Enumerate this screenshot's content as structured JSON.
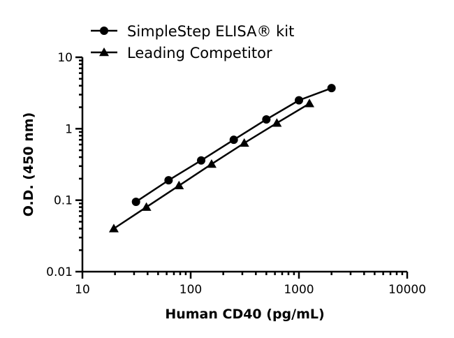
{
  "chart_data": {
    "type": "line",
    "xlabel": "Human CD40 (pg/mL)",
    "ylabel": "O.D. (450 nm)",
    "xscale": "log",
    "yscale": "log",
    "xlim": [
      10,
      10000
    ],
    "ylim": [
      0.01,
      10
    ],
    "xticks": [
      10,
      100,
      1000,
      10000
    ],
    "xtick_labels": [
      "10",
      "100",
      "1000",
      "10000"
    ],
    "yticks": [
      0.01,
      0.1,
      1,
      10
    ],
    "ytick_labels": [
      "0.01",
      "0.1",
      "1",
      "10"
    ],
    "grid": false,
    "legend_position": "top-left",
    "series": [
      {
        "name": "SimpleStep ELISA® kit",
        "marker": "circle",
        "color": "#000000",
        "x": [
          31.25,
          62.5,
          125,
          250,
          500,
          1000,
          2000
        ],
        "y": [
          0.095,
          0.19,
          0.36,
          0.7,
          1.35,
          2.5,
          3.7
        ]
      },
      {
        "name": "Leading Competitor",
        "marker": "triangle",
        "color": "#000000",
        "x": [
          19.5,
          39,
          78,
          156,
          312.5,
          625,
          1250
        ],
        "y": [
          0.04,
          0.08,
          0.16,
          0.32,
          0.63,
          1.2,
          2.25
        ]
      }
    ]
  }
}
